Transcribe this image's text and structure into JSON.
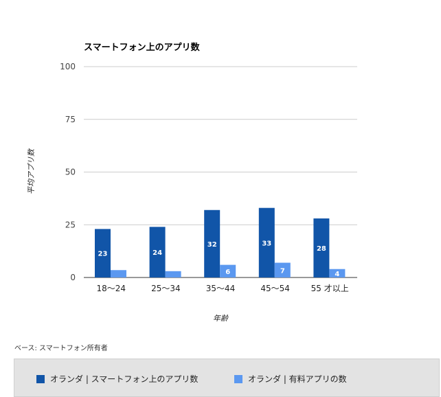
{
  "chart_data": {
    "type": "bar",
    "title": "スマートフォン上のアプリ数",
    "ylabel": "平均アプリ数",
    "xlabel": "年齢",
    "ylim": [
      0,
      100
    ],
    "yticks": [
      0,
      25,
      50,
      75,
      100
    ],
    "grid": true,
    "legend_position": "bottom",
    "categories": [
      "18〜24",
      "25〜34",
      "35〜44",
      "45〜54",
      "55 才以上"
    ],
    "series": [
      {
        "name": "オランダ | スマートフォン上のアプリ数",
        "color": "#1155a8",
        "values": [
          23,
          24,
          32,
          33,
          28
        ],
        "labels": [
          "23",
          "24",
          "32",
          "33",
          "28"
        ]
      },
      {
        "name": "オランダ | 有料アプリの数",
        "color": "#5b98f0",
        "values": [
          3.5,
          3,
          6,
          7,
          4
        ],
        "labels": [
          "",
          "",
          "6",
          "7",
          "4"
        ]
      }
    ]
  },
  "base_note": "ベース: スマートフォン所有者"
}
